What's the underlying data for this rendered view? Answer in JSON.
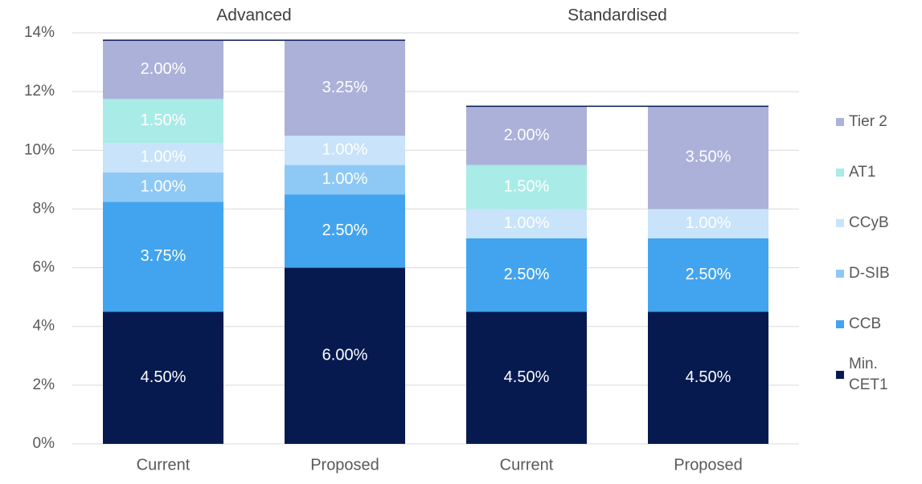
{
  "chart_data": {
    "type": "stacked-bar",
    "groups": [
      "Advanced",
      "Standardised"
    ],
    "categories": [
      "Current",
      "Proposed",
      "Current",
      "Proposed"
    ],
    "series": [
      {
        "name": "Min. CET1",
        "color": "#061a50",
        "values": [
          4.5,
          6,
          4.5,
          4.5
        ],
        "value_labels": [
          "4.50%",
          "6.00%",
          "4.50%",
          "4.50%"
        ]
      },
      {
        "name": "CCB",
        "color": "#42a4ee",
        "values": [
          3.75,
          2.5,
          2.5,
          2.5
        ],
        "value_labels": [
          "3.75%",
          "2.50%",
          "2.50%",
          "2.50%"
        ]
      },
      {
        "name": "D-SIB",
        "color": "#8ec9f6",
        "values": [
          1,
          1,
          null,
          null
        ],
        "value_labels": [
          "1.00%",
          "1.00%",
          null,
          null
        ]
      },
      {
        "name": "CCyB",
        "color": "#c8e3fa",
        "values": [
          1,
          1,
          1,
          1
        ],
        "value_labels": [
          "1.00%",
          "1.00%",
          "1.00%",
          "1.00%"
        ]
      },
      {
        "name": "AT1",
        "color": "#a9ebe7",
        "values": [
          1.5,
          null,
          1.5,
          null
        ],
        "value_labels": [
          "1.50%",
          null,
          "1.50%",
          null
        ]
      },
      {
        "name": "Tier 2",
        "color": "#abb1d9",
        "values": [
          2,
          3.25,
          2,
          3.5
        ],
        "value_labels": [
          "2.00%",
          "3.25%",
          "2.00%",
          "3.50%"
        ]
      }
    ],
    "ylim": [
      0,
      14
    ],
    "yticks": [
      {
        "value": 0,
        "label": "0%"
      },
      {
        "value": 2,
        "label": "2%"
      },
      {
        "value": 4,
        "label": "4%"
      },
      {
        "value": 6,
        "label": "6%"
      },
      {
        "value": 8,
        "label": "8%"
      },
      {
        "value": 10,
        "label": "10%"
      },
      {
        "value": 12,
        "label": "12%"
      },
      {
        "value": 14,
        "label": "14%"
      }
    ],
    "grid": true,
    "legend": "right"
  }
}
